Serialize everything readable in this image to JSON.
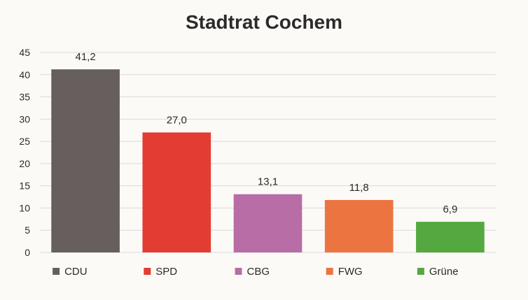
{
  "chart_data": {
    "type": "bar",
    "title": "Stadtrat Cochem",
    "xlabel": "",
    "ylabel": "",
    "categories": [
      "CDU",
      "SPD",
      "CBG",
      "FWG",
      "Grüne"
    ],
    "values": [
      41.2,
      27.0,
      13.1,
      11.8,
      6.9
    ],
    "value_labels": [
      "41,2",
      "27,0",
      "13,1",
      "11,8",
      "6,9"
    ],
    "colors": [
      "#665f5d",
      "#e33d33",
      "#b86da6",
      "#ec7441",
      "#55a83f"
    ],
    "ylim": [
      0,
      45
    ],
    "yticks": [
      "0",
      "5",
      "10",
      "15",
      "20",
      "25",
      "30",
      "35",
      "40",
      "45"
    ],
    "grid": true,
    "legend_position": "bottom",
    "background": "#fcfaf6",
    "grid_color": "#d9d9d9",
    "text_color": "#2b2b2b"
  }
}
